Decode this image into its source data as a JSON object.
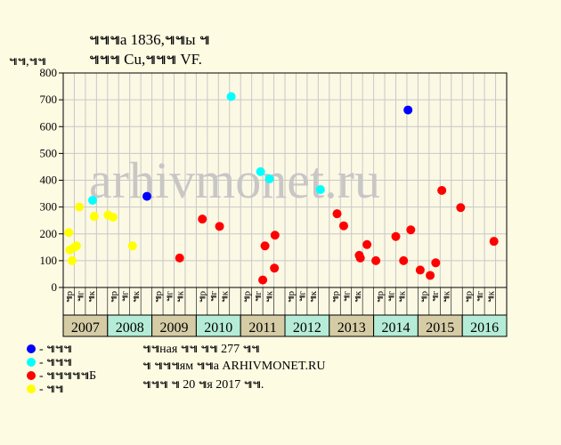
{
  "title_line1": "๚๚๚а 1836,๚๚ы ๚",
  "title_line2": "๚๚๚ Cu,๚๚๚ VF.",
  "y_unit": "๚๚,๚๚",
  "watermark": "arhivmonet.ru",
  "footer": {
    "line1": "๚๚ная ๚๚ ๚๚ 277 ๚๚",
    "line2": "๚ ๚๚๚ям ๚๚а ARHIVMONET.RU",
    "line3": "๚๚๚ ๚ 20 ๚я 2017 ๚๚."
  },
  "colors": {
    "background": "#fdfbe2",
    "plot_bg": "#fbf9e4",
    "grid": "#c8c8c8",
    "year_bg": "#d5cca6",
    "year_bg_alt": "#b5ecd8",
    "blue": "#0000ff",
    "cyan": "#00ffff",
    "red": "#ff0000",
    "yellow": "#ffff00"
  },
  "chart_data": {
    "type": "scatter",
    "ylim": [
      0,
      800
    ],
    "yticks": [
      0,
      100,
      200,
      300,
      400,
      500,
      600,
      700,
      800
    ],
    "grid": true,
    "quarter_labels": [
      "๚р",
      "๚г",
      "๚к"
    ],
    "years": [
      "2007",
      "2008",
      "2009",
      "2010",
      "2011",
      "2012",
      "2013",
      "2014",
      "2015",
      "2016"
    ],
    "legend": [
      {
        "color": "#0000ff",
        "label": "- ๚๚๚"
      },
      {
        "color": "#00ffff",
        "label": "- ๚๚๚"
      },
      {
        "color": "#ff0000",
        "label": "- ๚๚๚๚๚Б"
      },
      {
        "color": "#ffff00",
        "label": "- ๚๚"
      }
    ],
    "series": [
      {
        "color": "#0000ff",
        "points": [
          [
            7.55,
            340
          ],
          [
            31.1,
            662
          ]
        ]
      },
      {
        "color": "#00ffff",
        "points": [
          [
            2.65,
            325
          ],
          [
            15.15,
            712
          ],
          [
            17.8,
            432
          ],
          [
            18.6,
            405
          ],
          [
            23.2,
            365
          ]
        ]
      },
      {
        "color": "#ff0000",
        "points": [
          [
            10.5,
            110
          ],
          [
            12.55,
            255
          ],
          [
            14.1,
            228
          ],
          [
            18.0,
            28
          ],
          [
            18.2,
            155
          ],
          [
            19.1,
            195
          ],
          [
            19.05,
            72
          ],
          [
            24.7,
            275
          ],
          [
            25.3,
            230
          ],
          [
            26.7,
            120
          ],
          [
            26.8,
            110
          ],
          [
            27.4,
            160
          ],
          [
            28.2,
            100
          ],
          [
            30.0,
            190
          ],
          [
            30.7,
            100
          ],
          [
            31.35,
            215
          ],
          [
            32.2,
            65
          ],
          [
            33.1,
            45
          ],
          [
            33.6,
            92
          ],
          [
            34.15,
            362
          ],
          [
            35.85,
            298
          ],
          [
            38.85,
            172
          ]
        ]
      },
      {
        "color": "#ffff00",
        "points": [
          [
            0.5,
            205
          ],
          [
            0.6,
            140
          ],
          [
            0.8,
            100
          ],
          [
            1.0,
            150
          ],
          [
            1.2,
            155
          ],
          [
            1.45,
            300
          ],
          [
            2.8,
            265
          ],
          [
            4.05,
            270
          ],
          [
            4.5,
            262
          ],
          [
            6.25,
            155
          ]
        ]
      }
    ]
  }
}
